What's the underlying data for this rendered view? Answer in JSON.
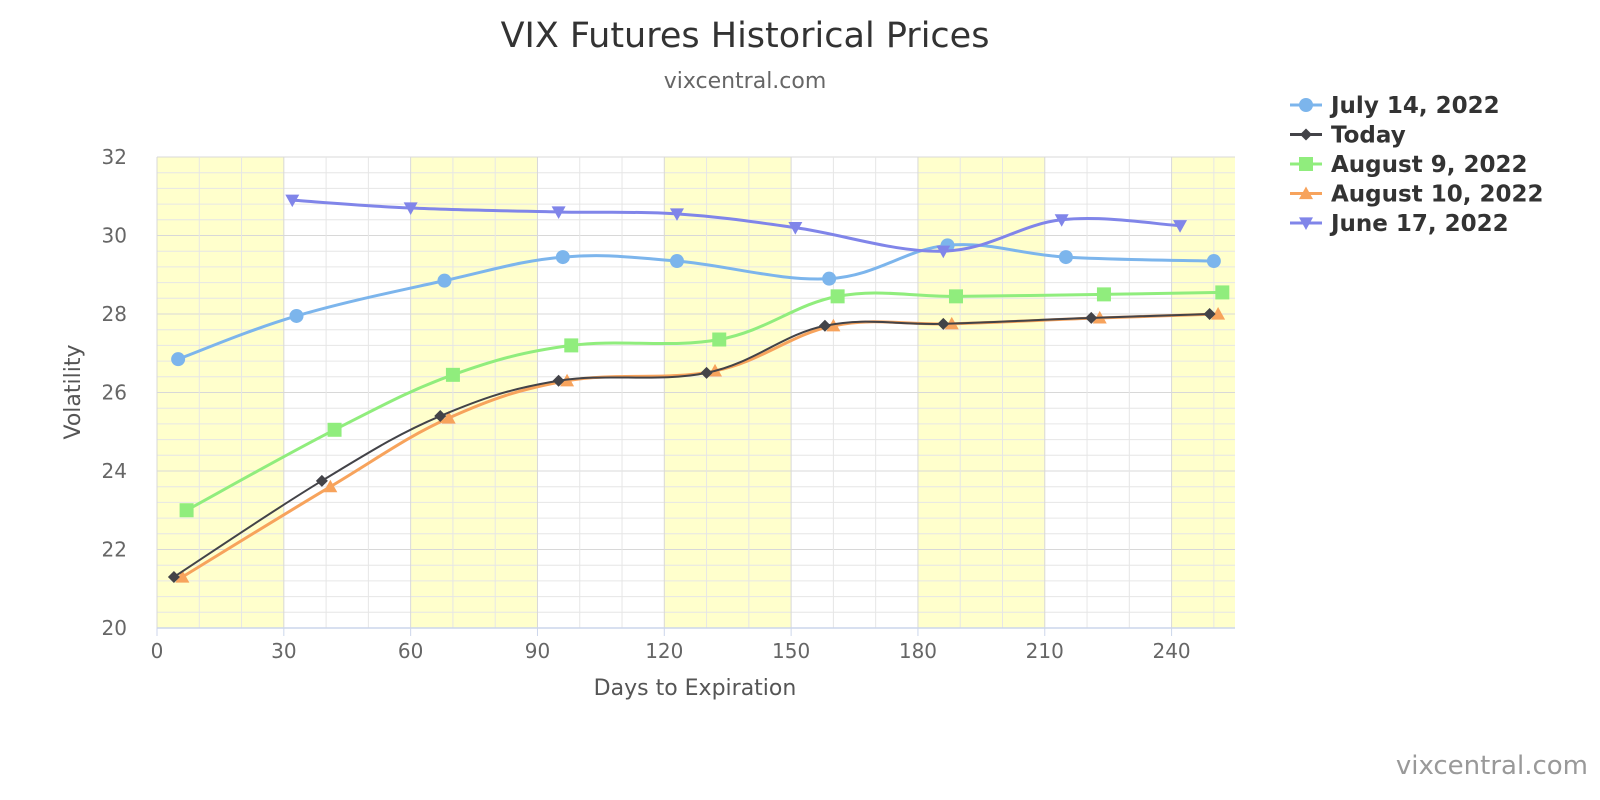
{
  "chart_data": {
    "type": "line",
    "title": "VIX Futures Historical Prices",
    "subtitle": "vixcentral.com",
    "xlabel": "Days to Expiration",
    "ylabel": "Volatility",
    "xlim": [
      0,
      255
    ],
    "ylim": [
      20,
      32
    ],
    "xticks": [
      0,
      30,
      60,
      90,
      120,
      150,
      180,
      210,
      240
    ],
    "yticks": [
      20,
      22,
      24,
      26,
      28,
      30,
      32
    ],
    "grid": true,
    "shaded_bands": [
      [
        0,
        30
      ],
      [
        60,
        90
      ],
      [
        120,
        150
      ],
      [
        180,
        210
      ],
      [
        240,
        255
      ]
    ],
    "legend_position": "top-right",
    "credit": "vixcentral.com",
    "series": [
      {
        "name": "July 14, 2022",
        "color": "#7cb5ec",
        "marker": "circle",
        "points": [
          [
            5,
            26.85
          ],
          [
            33,
            27.95
          ],
          [
            68,
            28.85
          ],
          [
            96,
            29.45
          ],
          [
            123,
            29.35
          ],
          [
            159,
            28.9
          ],
          [
            187,
            29.75
          ],
          [
            215,
            29.45
          ],
          [
            250,
            29.35
          ]
        ]
      },
      {
        "name": "Today",
        "color": "#434348",
        "marker": "diamond",
        "points": [
          [
            4,
            21.3
          ],
          [
            39,
            23.75
          ],
          [
            67,
            25.4
          ],
          [
            95,
            26.3
          ],
          [
            130,
            26.5
          ],
          [
            158,
            27.7
          ],
          [
            186,
            27.75
          ],
          [
            221,
            27.9
          ],
          [
            249,
            28.0
          ]
        ]
      },
      {
        "name": "August 9, 2022",
        "color": "#90ed7d",
        "marker": "square",
        "points": [
          [
            7,
            23.0
          ],
          [
            42,
            25.05
          ],
          [
            70,
            26.45
          ],
          [
            98,
            27.2
          ],
          [
            133,
            27.35
          ],
          [
            161,
            28.45
          ],
          [
            189,
            28.45
          ],
          [
            224,
            28.5
          ],
          [
            252,
            28.55
          ]
        ]
      },
      {
        "name": "August 10, 2022",
        "color": "#f7a35c",
        "marker": "triangle",
        "points": [
          [
            6,
            21.3
          ],
          [
            41,
            23.6
          ],
          [
            69,
            25.35
          ],
          [
            97,
            26.3
          ],
          [
            132,
            26.55
          ],
          [
            160,
            27.7
          ],
          [
            188,
            27.75
          ],
          [
            223,
            27.9
          ],
          [
            251,
            28.0
          ]
        ]
      },
      {
        "name": "June 17, 2022",
        "color": "#8085e9",
        "marker": "triangle-down",
        "points": [
          [
            32,
            30.9
          ],
          [
            60,
            30.7
          ],
          [
            95,
            30.6
          ],
          [
            123,
            30.55
          ],
          [
            151,
            30.2
          ],
          [
            186,
            29.6
          ],
          [
            214,
            30.4
          ],
          [
            242,
            30.25
          ]
        ]
      }
    ]
  }
}
